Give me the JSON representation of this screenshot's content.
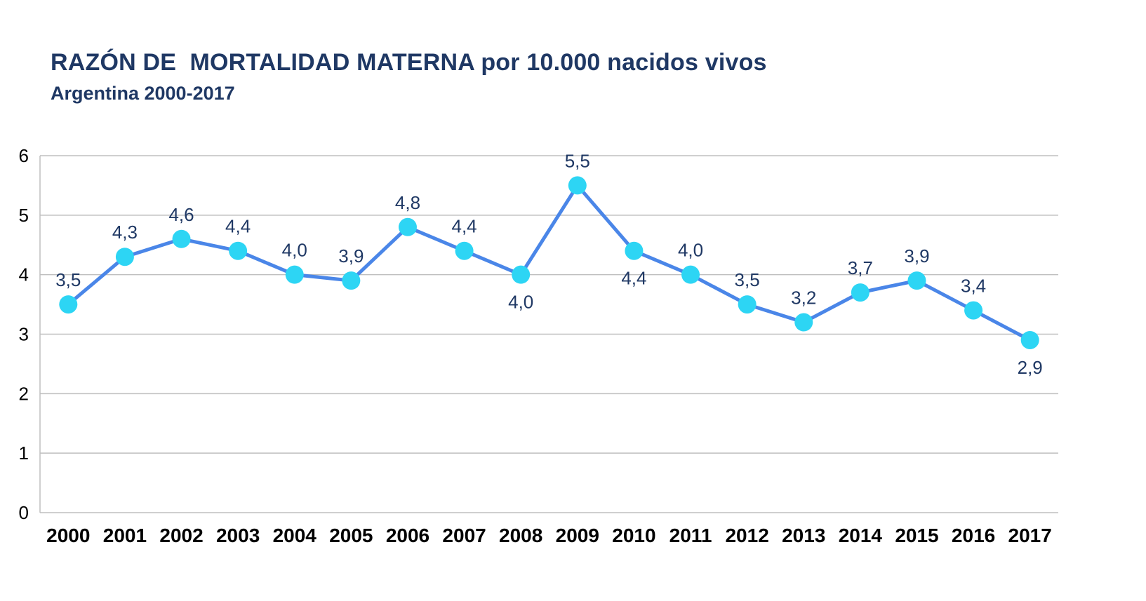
{
  "chart_data": {
    "type": "line",
    "title": "RAZÓN DE  MORTALIDAD MATERNA por 10.000 nacidos vivos",
    "subtitle": "Argentina 2000-2017",
    "categories": [
      "2000",
      "2001",
      "2002",
      "2003",
      "2004",
      "2005",
      "2006",
      "2007",
      "2008",
      "2009",
      "2010",
      "2011",
      "2012",
      "2013",
      "2014",
      "2015",
      "2016",
      "2017"
    ],
    "values": [
      3.5,
      4.3,
      4.6,
      4.4,
      4.0,
      3.9,
      4.8,
      4.4,
      4.0,
      5.5,
      4.4,
      4.0,
      3.5,
      3.2,
      3.7,
      3.9,
      3.4,
      2.9
    ],
    "labels": [
      "3,5",
      "4,3",
      "4,6",
      "4,4",
      "4,0",
      "3,9",
      "4,8",
      "4,4",
      "4,0",
      "5,5",
      "4,4",
      "4,0",
      "3,5",
      "3,2",
      "3,7",
      "3,9",
      "3,4",
      "2,9"
    ],
    "labels_below_indices": [
      8,
      10,
      17
    ],
    "xlabel": "",
    "ylabel": "",
    "ylim": [
      0,
      6
    ],
    "y_ticks": [
      0,
      1,
      2,
      3,
      4,
      5,
      6
    ],
    "grid": true,
    "legend": false,
    "colors": {
      "line": "#4A86E8",
      "marker": "#2DD5F4",
      "label": "#1F3864",
      "grid": "#BFBFBF",
      "axis_text": "#000000",
      "title": "#1F3864"
    }
  }
}
